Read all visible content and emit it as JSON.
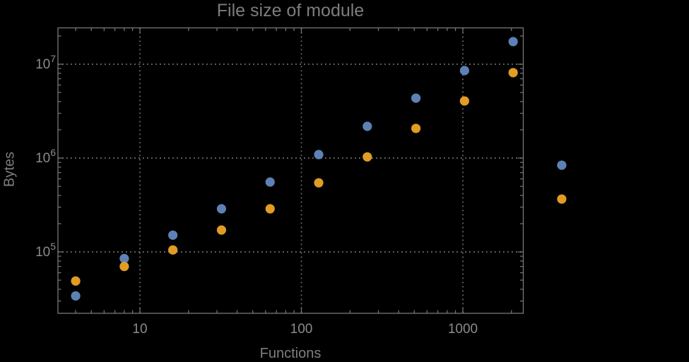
{
  "page": {
    "background": "#000000"
  },
  "colors": {
    "blue_series": "#5E81B5",
    "orange_series": "#E19C24",
    "frame": "#787878",
    "grid": "#757575",
    "tick_label": "#8b8b8b",
    "title_text": "#7d7d7d",
    "axis_label_text": "#7f7f7f",
    "background": "#000000"
  },
  "chart_data": {
    "type": "scatter",
    "title": "File size of module",
    "xlabel": "Functions",
    "ylabel": "Bytes",
    "x_scale": "log",
    "y_scale": "log",
    "xlim": [
      3.1,
      2366
    ],
    "ylim": [
      22200,
      24380000
    ],
    "grid": "dotted gridlines at powers of ten, frame with inward log ticks on all four edges",
    "legend": "none",
    "x": [
      4,
      8,
      16,
      32,
      64,
      128,
      256,
      512,
      1024,
      2048,
      4096
    ],
    "series": [
      {
        "name": "blue",
        "color": "#5E81B5",
        "values": [
          34000,
          85000,
          151000,
          288000,
          555000,
          1090000,
          2180000,
          4350000,
          8560000,
          17400000,
          840000
        ]
      },
      {
        "name": "orange",
        "color": "#E19C24",
        "values": [
          49000,
          70000,
          105000,
          171000,
          288000,
          545000,
          1030000,
          2070000,
          4060000,
          8130000,
          366000
        ]
      }
    ],
    "x_ticks": [
      {
        "value": 10,
        "label": "10"
      },
      {
        "value": 100,
        "label": "100"
      },
      {
        "value": 1000,
        "label": "1000"
      }
    ],
    "y_ticks": [
      {
        "value": 100000,
        "base": "10",
        "exp": "5"
      },
      {
        "value": 1000000,
        "base": "10",
        "exp": "6"
      },
      {
        "value": 10000000,
        "base": "10",
        "exp": "7"
      }
    ],
    "marker": {
      "shape": "circle",
      "radius_px": 6.6
    }
  }
}
